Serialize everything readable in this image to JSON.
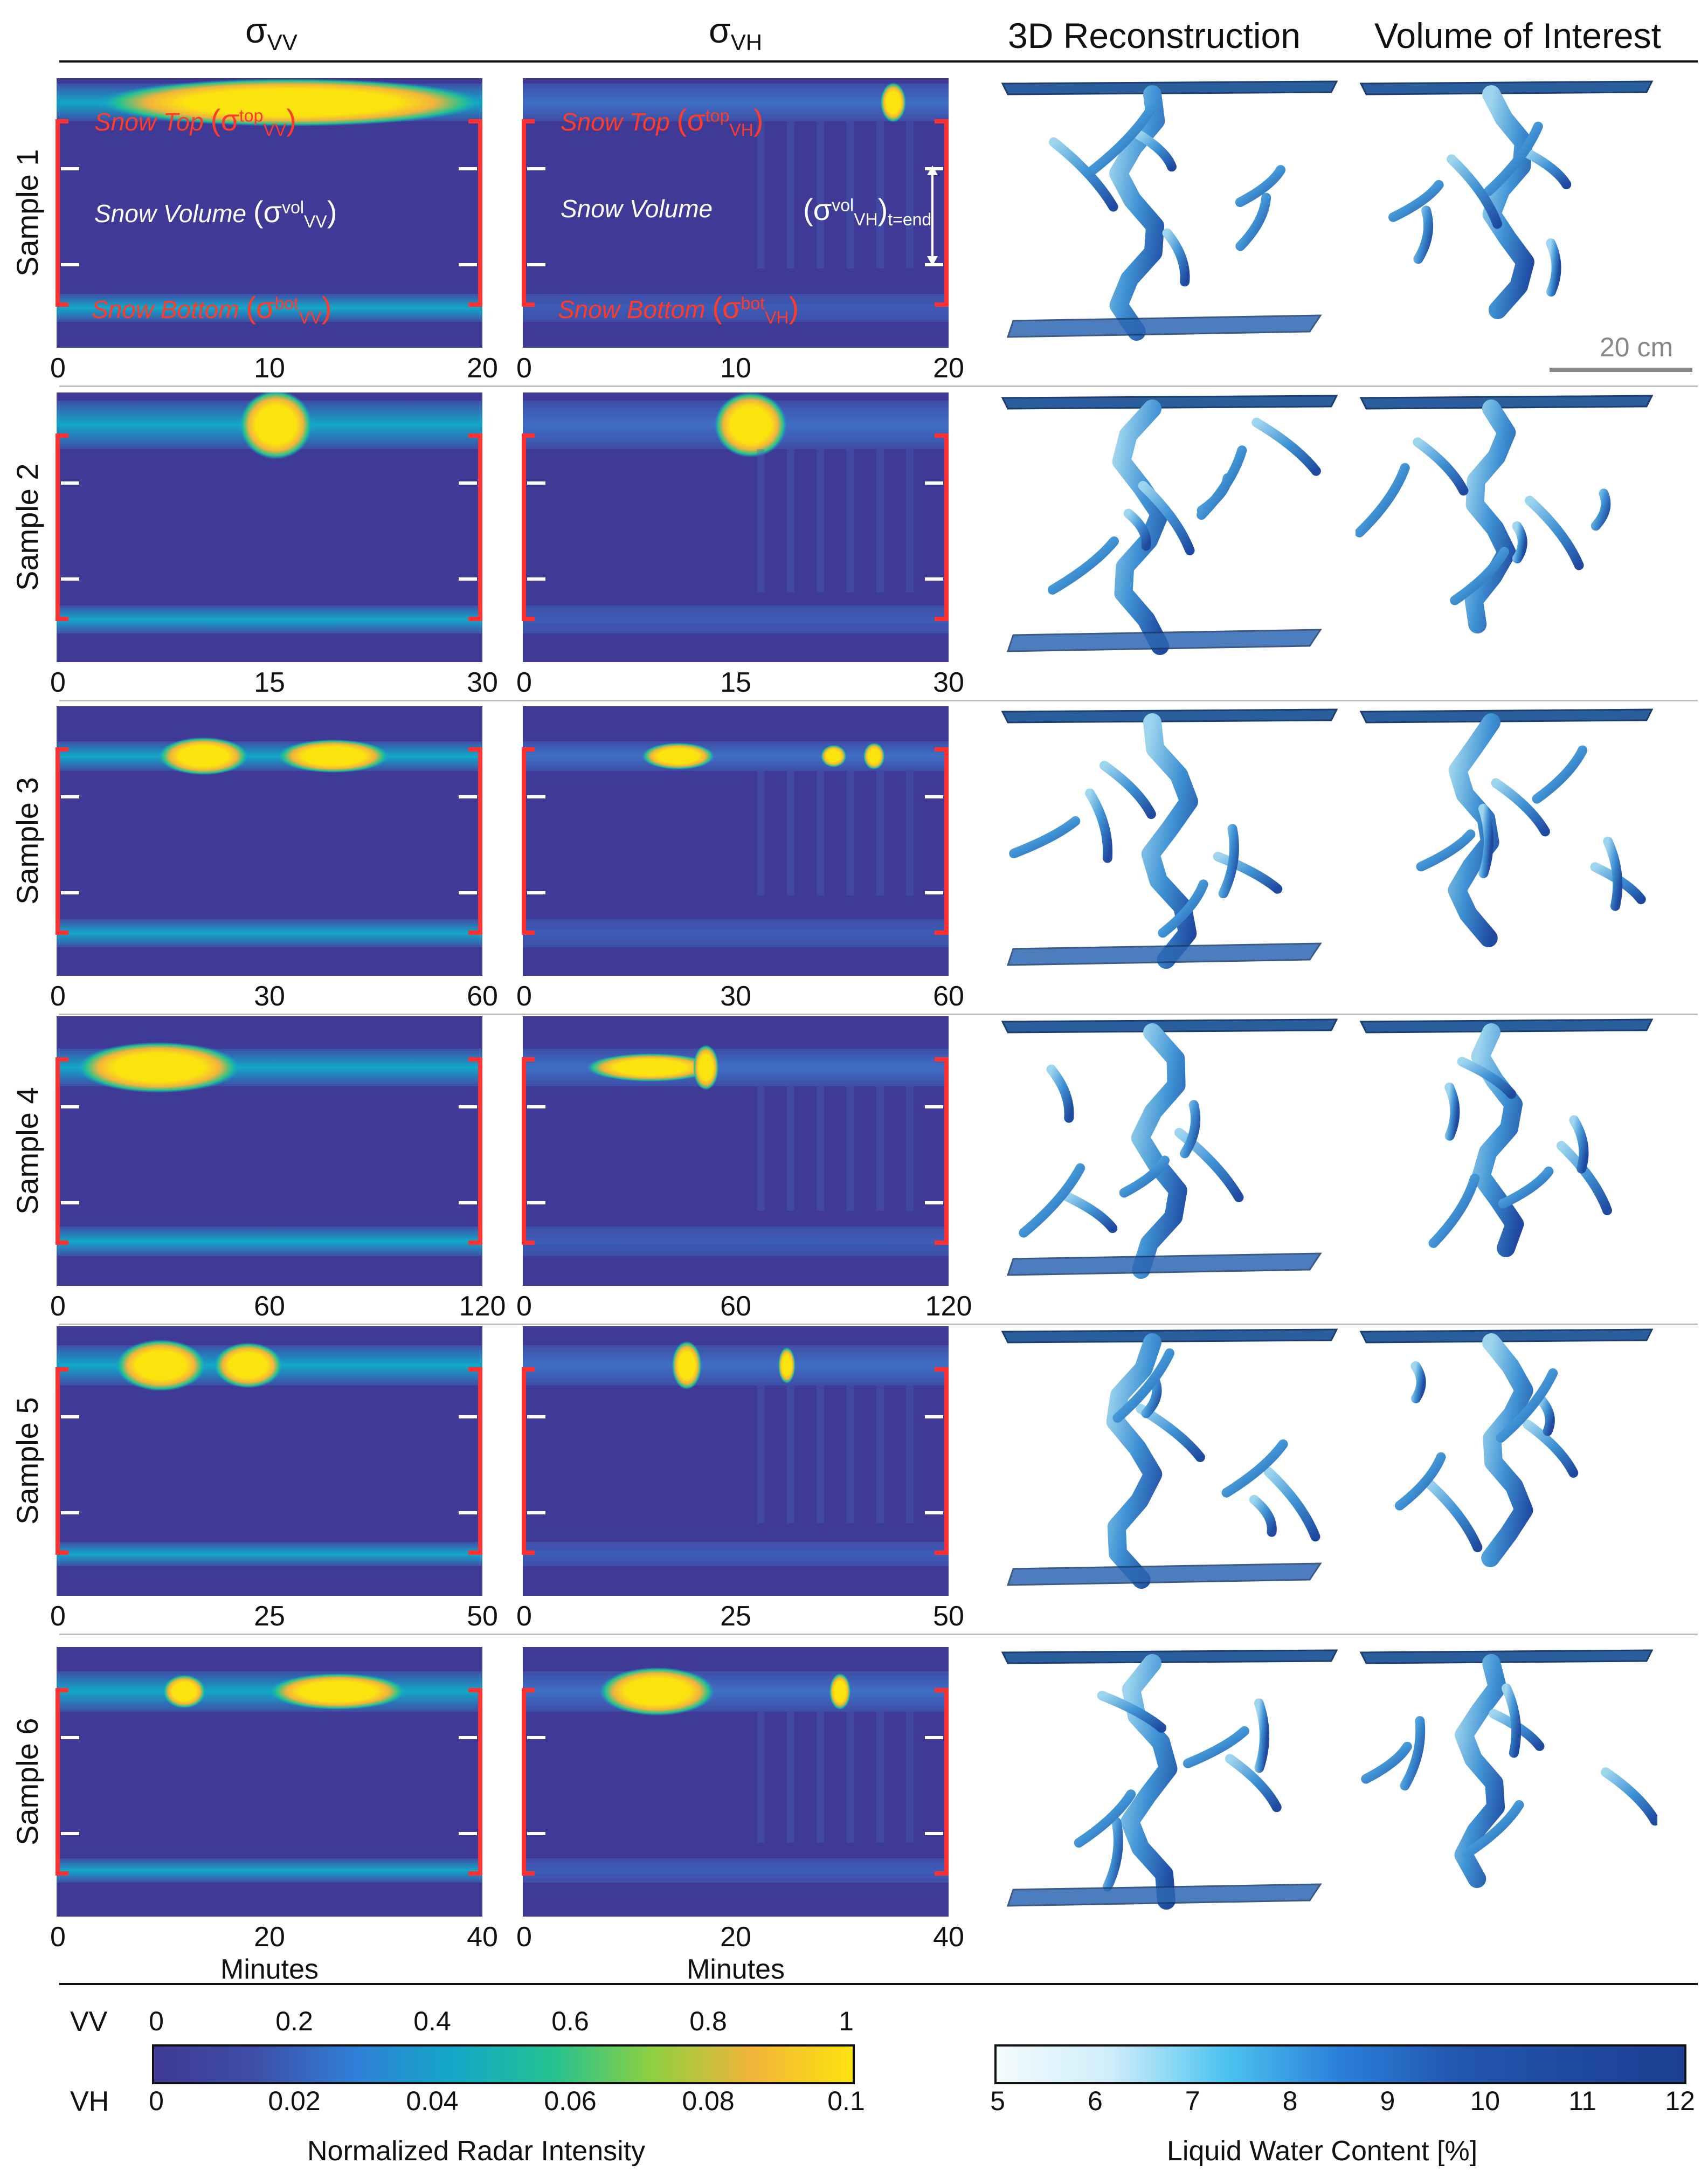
{
  "headers": {
    "col_vv": "σ",
    "col_vv_sub": "VV",
    "col_vh": "σ",
    "col_vh_sub": "VH",
    "col_recon": "3D Reconstruction",
    "col_voi": "Volume of Interest"
  },
  "annotations": {
    "snow_top": "Snow Top",
    "snow_volume": "Snow Volume",
    "snow_bottom": "Snow Bottom",
    "sigma_vv_top": "(σ",
    "sigma_vv_top_sup": "top",
    "sigma_vv_top_sub": "VV",
    "sigma_vv_vol": "(σ",
    "sigma_vv_vol_sup": "vol",
    "sigma_vv_vol_sub": "VV",
    "sigma_vv_bot": "(σ",
    "sigma_vv_bot_sup": "bot",
    "sigma_vv_bot_sub": "VV",
    "sigma_vh_top": "(σ",
    "sigma_vh_top_sup": "top",
    "sigma_vh_top_sub": "VH",
    "sigma_vh_bot": "(σ",
    "sigma_vh_bot_sup": "bot",
    "sigma_vh_bot_sub": "VH",
    "sigma_vh_vol_end": "(σ",
    "sigma_vh_vol_end_sup": "vol",
    "sigma_vh_vol_end_sub": "VH",
    "sigma_vh_vol_end_tail": "t=end",
    "scalebar_label": "20 cm"
  },
  "x_axis_label": "Minutes",
  "samples": [
    {
      "label": "Sample 1",
      "ticks": [
        "0",
        "10",
        "20"
      ]
    },
    {
      "label": "Sample 2",
      "ticks": [
        "0",
        "15",
        "30"
      ]
    },
    {
      "label": "Sample 3",
      "ticks": [
        "0",
        "30",
        "60"
      ]
    },
    {
      "label": "Sample 4",
      "ticks": [
        "0",
        "60",
        "120"
      ]
    },
    {
      "label": "Sample 5",
      "ticks": [
        "0",
        "25",
        "50"
      ]
    },
    {
      "label": "Sample 6",
      "ticks": [
        "0",
        "20",
        "40"
      ]
    }
  ],
  "colorbars": {
    "radar": {
      "row_vv_label": "VV",
      "row_vh_label": "VH",
      "vv_ticks": [
        "0",
        "0.2",
        "0.4",
        "0.6",
        "0.8",
        "1"
      ],
      "vh_ticks": [
        "0",
        "0.02",
        "0.04",
        "0.06",
        "0.08",
        "0.1"
      ],
      "title": "Normalized Radar Intensity",
      "colors": [
        "#3e3a95",
        "#3e4ea8",
        "#2f7fd6",
        "#12a8c8",
        "#24c290",
        "#8fd040",
        "#f2b43a",
        "#fbe40e"
      ]
    },
    "lwc": {
      "ticks": [
        "5",
        "6",
        "7",
        "8",
        "9",
        "10",
        "11",
        "12"
      ],
      "title": "Liquid Water Content [%]",
      "colors": [
        "#f3fbfd",
        "#cfeefa",
        "#4cc3f0",
        "#2a7fd8",
        "#2357b0",
        "#1f4aa0",
        "#1c3f92"
      ]
    }
  }
}
